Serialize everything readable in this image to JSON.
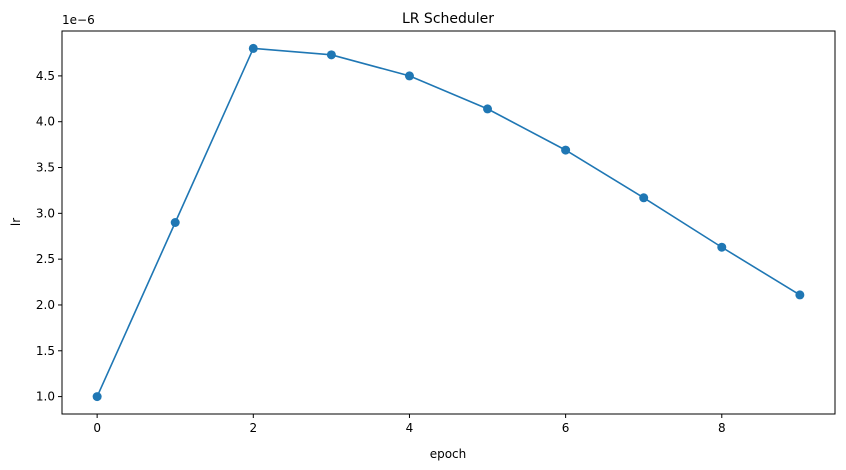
{
  "chart_data": {
    "type": "line",
    "title": "LR Scheduler",
    "xlabel": "epoch",
    "ylabel": "lr",
    "offset_label": "1e−6",
    "x": [
      0,
      1,
      2,
      3,
      4,
      5,
      6,
      7,
      8,
      9
    ],
    "series": [
      {
        "values": [
          1e-06,
          2.9e-06,
          4.8e-06,
          4.73e-06,
          4.5e-06,
          4.14e-06,
          3.69e-06,
          3.17e-06,
          2.63e-06,
          2.11e-06
        ],
        "color": "#1f77b4",
        "marker": "circle"
      }
    ],
    "xticks": [
      0,
      2,
      4,
      6,
      8
    ],
    "xtick_labels": [
      "0",
      "2",
      "4",
      "6",
      "8"
    ],
    "yticks": [
      1e-06,
      1.5e-06,
      2e-06,
      2.5e-06,
      3e-06,
      3.5e-06,
      4e-06,
      4.5e-06
    ],
    "ytick_labels": [
      "1.0",
      "1.5",
      "2.0",
      "2.5",
      "3.0",
      "3.5",
      "4.0",
      "4.5"
    ],
    "xlim": [
      -0.45,
      9.45
    ],
    "ylim": [
      8.1e-07,
      4.99e-06
    ],
    "grid": false,
    "legend": "none"
  }
}
